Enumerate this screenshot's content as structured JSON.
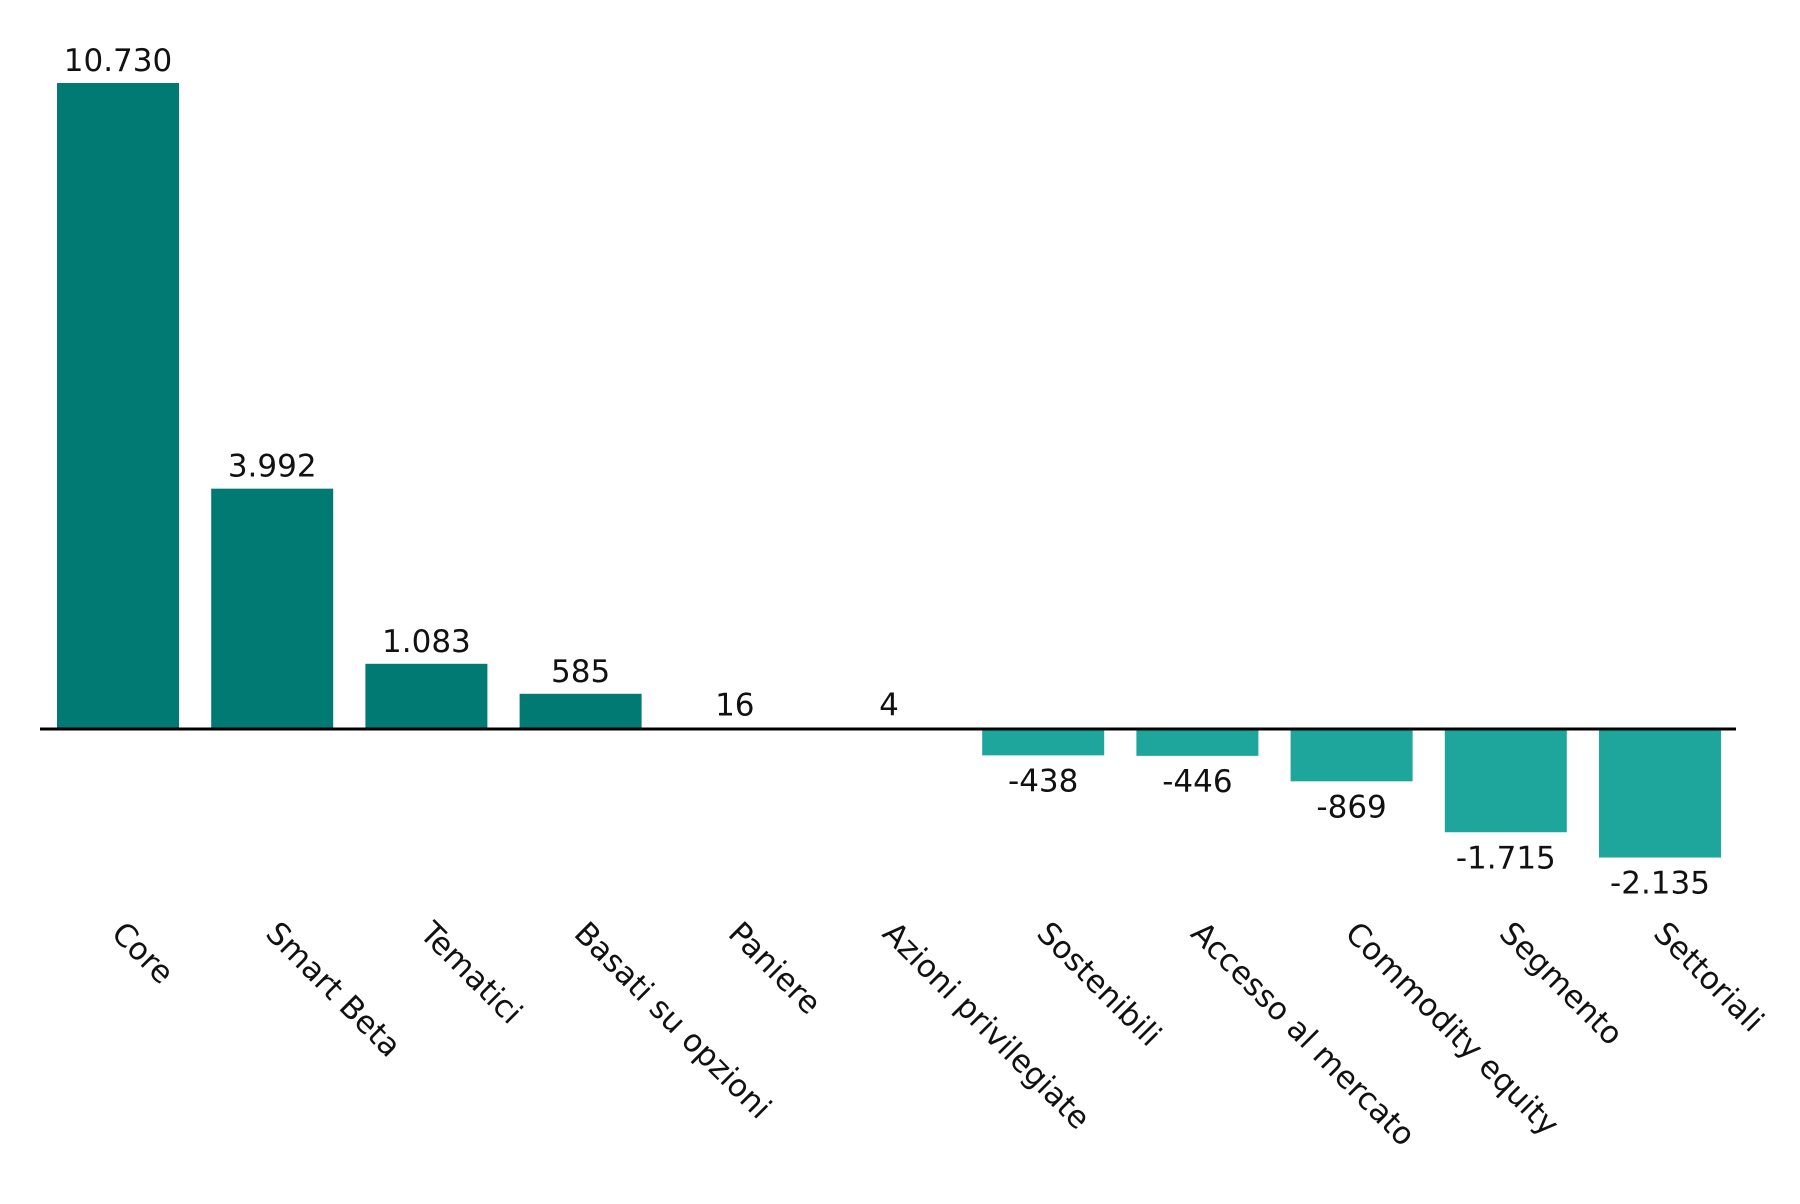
{
  "chart_data": {
    "type": "bar",
    "categories": [
      "Core",
      "Smart Beta",
      "Tematici",
      "Basati su opzioni",
      "Paniere",
      "Azioni privilegiate",
      "Sostenibili",
      "Accesso al mercato",
      "Commodity equity",
      "Segmento",
      "Settoriali"
    ],
    "values": [
      10730,
      3992,
      1083,
      585,
      16,
      4,
      -438,
      -446,
      -869,
      -1715,
      -2135
    ],
    "data_labels": [
      "10.730",
      "3.992",
      "1.083",
      "585",
      "16",
      "4",
      "-438",
      "-446",
      "-869",
      "-1.715",
      "-2.135"
    ],
    "title": "",
    "xlabel": "",
    "ylabel": "",
    "ylim": [
      -2135,
      10730
    ],
    "grid": false,
    "legend": "none",
    "colors": {
      "positive": "#007a73",
      "negative": "#1ea59c",
      "axis": "#000000"
    }
  }
}
